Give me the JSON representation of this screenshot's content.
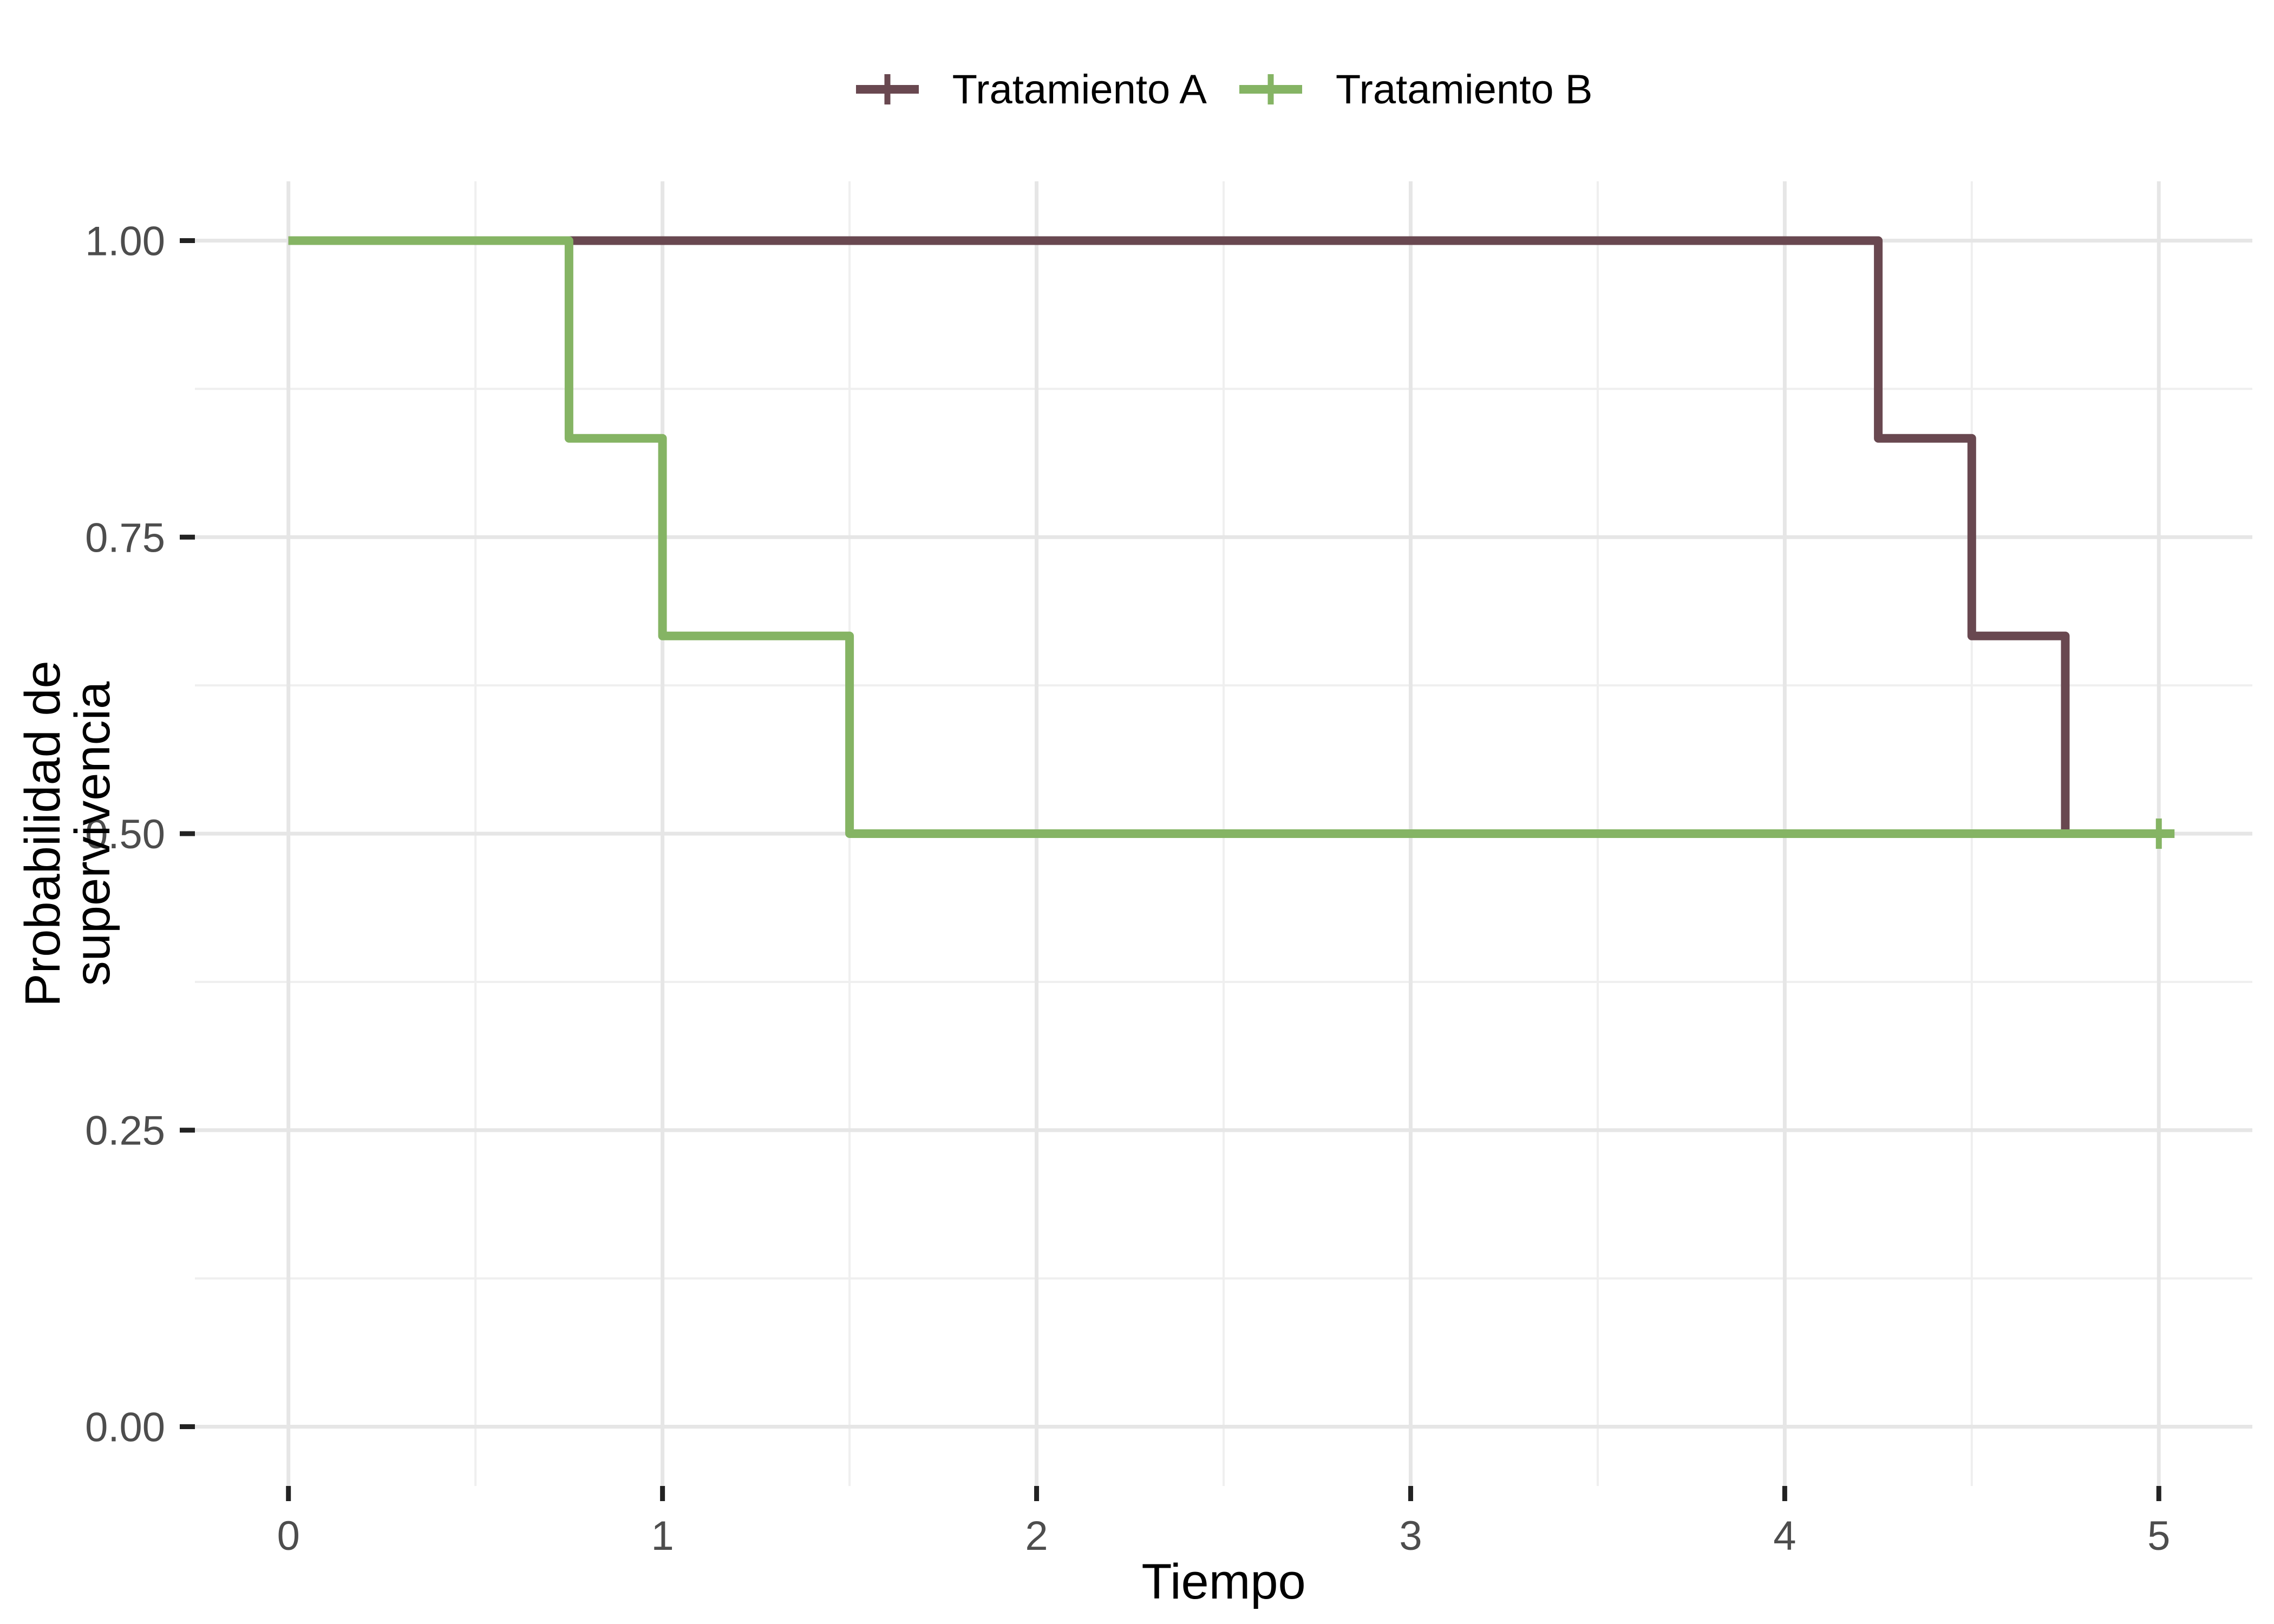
{
  "chart_data": {
    "type": "line",
    "variant": "kaplan-meier-step",
    "title": "",
    "xlabel": "Tiempo",
    "ylabel": "Probabilidad de supervivencia",
    "xlim": [
      0,
      5
    ],
    "ylim": [
      0,
      1
    ],
    "expansion": 0.05,
    "x_ticks": [
      0,
      1,
      2,
      3,
      4,
      5
    ],
    "x_tick_labels": [
      "0",
      "1",
      "2",
      "3",
      "4",
      "5"
    ],
    "y_ticks": [
      0,
      0.25,
      0.5,
      0.75,
      1
    ],
    "y_tick_labels": [
      "0.00",
      "0.25",
      "0.50",
      "0.75",
      "1.00"
    ],
    "x_minor": [
      0.5,
      1.5,
      2.5,
      3.5,
      4.5
    ],
    "y_minor": [
      0.125,
      0.375,
      0.625,
      0.875
    ],
    "grid": true,
    "legend_position": "top",
    "series": [
      {
        "name": "Tratamiento A",
        "color": "#694850",
        "points": [
          [
            0,
            1
          ],
          [
            4.25,
            1
          ],
          [
            4.25,
            0.8333333
          ],
          [
            4.5,
            0.8333333
          ],
          [
            4.5,
            0.6666667
          ],
          [
            4.75,
            0.6666667
          ],
          [
            4.75,
            0.5
          ]
        ],
        "censored": []
      },
      {
        "name": "Tratamiento B",
        "color": "#85B464",
        "points": [
          [
            0,
            1
          ],
          [
            0.75,
            1
          ],
          [
            0.75,
            0.8333333
          ],
          [
            1,
            0.8333333
          ],
          [
            1,
            0.6666667
          ],
          [
            1.5,
            0.6666667
          ],
          [
            1.5,
            0.5
          ],
          [
            5,
            0.5
          ]
        ],
        "censored": [
          [
            5,
            0.5
          ]
        ]
      }
    ],
    "colors": {
      "background": "#ffffff",
      "grid_major": "#e6e6e6",
      "grid_minor": "#efefef",
      "tick_mark": "#222222",
      "tick_label": "#4d4d4d",
      "axis_title": "#000000",
      "legend_text": "#000000"
    }
  }
}
